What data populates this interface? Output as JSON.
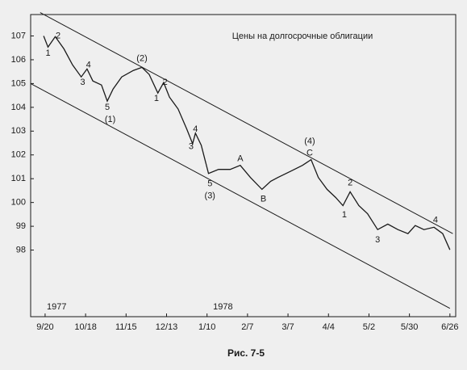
{
  "chart_data": {
    "type": "line",
    "title": "Цены на долгосрочные облигации",
    "caption": "Рис. 7-5",
    "xlim": [
      -10,
      284
    ],
    "ylim": [
      95.2,
      107.9
    ],
    "yticks": [
      98,
      99,
      100,
      101,
      102,
      103,
      104,
      105,
      106,
      107
    ],
    "xticks": [
      {
        "value": 0,
        "label": "9/20"
      },
      {
        "value": 28,
        "label": "10/18"
      },
      {
        "value": 56,
        "label": "11/15"
      },
      {
        "value": 84,
        "label": "12/13"
      },
      {
        "value": 112,
        "label": "1/10"
      },
      {
        "value": 140,
        "label": "2/7"
      },
      {
        "value": 168,
        "label": "3/7"
      },
      {
        "value": 196,
        "label": "4/4"
      },
      {
        "value": 224,
        "label": "5/2"
      },
      {
        "value": 252,
        "label": "5/30"
      },
      {
        "value": 280,
        "label": "6/26"
      }
    ],
    "series": [
      {
        "color": "#1a1a1a",
        "x": [
          -1,
          2,
          7,
          13,
          19,
          25,
          29,
          33,
          39,
          43,
          47,
          53,
          61,
          67,
          72,
          78,
          82,
          86,
          92,
          98,
          102,
          104,
          108,
          113,
          120,
          128,
          135,
          142,
          150,
          156,
          161,
          170,
          178,
          184,
          189,
          195,
          201,
          206,
          211,
          217,
          223,
          230,
          237,
          244,
          251,
          256,
          262,
          269,
          275,
          280
        ],
        "values": [
          107.0,
          106.53,
          106.97,
          106.46,
          105.78,
          105.28,
          105.61,
          105.11,
          104.94,
          104.26,
          104.77,
          105.28,
          105.55,
          105.68,
          105.38,
          104.6,
          105.04,
          104.43,
          103.93,
          103.08,
          102.47,
          102.91,
          102.41,
          101.22,
          101.39,
          101.39,
          101.56,
          101.05,
          100.55,
          100.89,
          101.05,
          101.32,
          101.56,
          101.8,
          101.05,
          100.55,
          100.21,
          99.87,
          100.45,
          99.87,
          99.53,
          98.86,
          99.09,
          98.86,
          98.69,
          99.03,
          98.86,
          98.96,
          98.69,
          98.01
        ]
      }
    ],
    "trendlines": [
      {
        "color": "#1a1a1a",
        "x": [
          -3.4,
          282
        ],
        "values": [
          107.98,
          98.69
        ]
      },
      {
        "color": "#1a1a1a",
        "x": [
          -10,
          280
        ],
        "values": [
          105.0,
          95.55
        ]
      }
    ],
    "annotations": [
      {
        "text": "1",
        "x": 2,
        "y": 106.26
      },
      {
        "text": "2",
        "x": 9,
        "y": 107.0
      },
      {
        "text": "3",
        "x": 26,
        "y": 105.04
      },
      {
        "text": "4",
        "x": 30,
        "y": 105.78
      },
      {
        "text": "5",
        "x": 43,
        "y": 103.99
      },
      {
        "text": "(1)",
        "x": 45,
        "y": 103.49
      },
      {
        "text": "(2)",
        "x": 67,
        "y": 106.05
      },
      {
        "text": "1",
        "x": 77,
        "y": 104.36
      },
      {
        "text": "2",
        "x": 83,
        "y": 105.04
      },
      {
        "text": "4",
        "x": 104,
        "y": 103.08
      },
      {
        "text": "3",
        "x": 101,
        "y": 102.34
      },
      {
        "text": "5",
        "x": 114,
        "y": 100.78
      },
      {
        "text": "(3)",
        "x": 114,
        "y": 100.28
      },
      {
        "text": "A",
        "x": 135,
        "y": 101.83
      },
      {
        "text": "B",
        "x": 151,
        "y": 100.14
      },
      {
        "text": "(4)",
        "x": 183,
        "y": 102.57
      },
      {
        "text": "C",
        "x": 183,
        "y": 102.07
      },
      {
        "text": "1",
        "x": 207,
        "y": 99.47
      },
      {
        "text": "2",
        "x": 211,
        "y": 100.82
      },
      {
        "text": "3",
        "x": 230,
        "y": 98.42
      },
      {
        "text": "4",
        "x": 270,
        "y": 99.26
      },
      {
        "text": "1977",
        "x": 8,
        "y": 95.6
      },
      {
        "text": "1978",
        "x": 123,
        "y": 95.6
      }
    ]
  }
}
